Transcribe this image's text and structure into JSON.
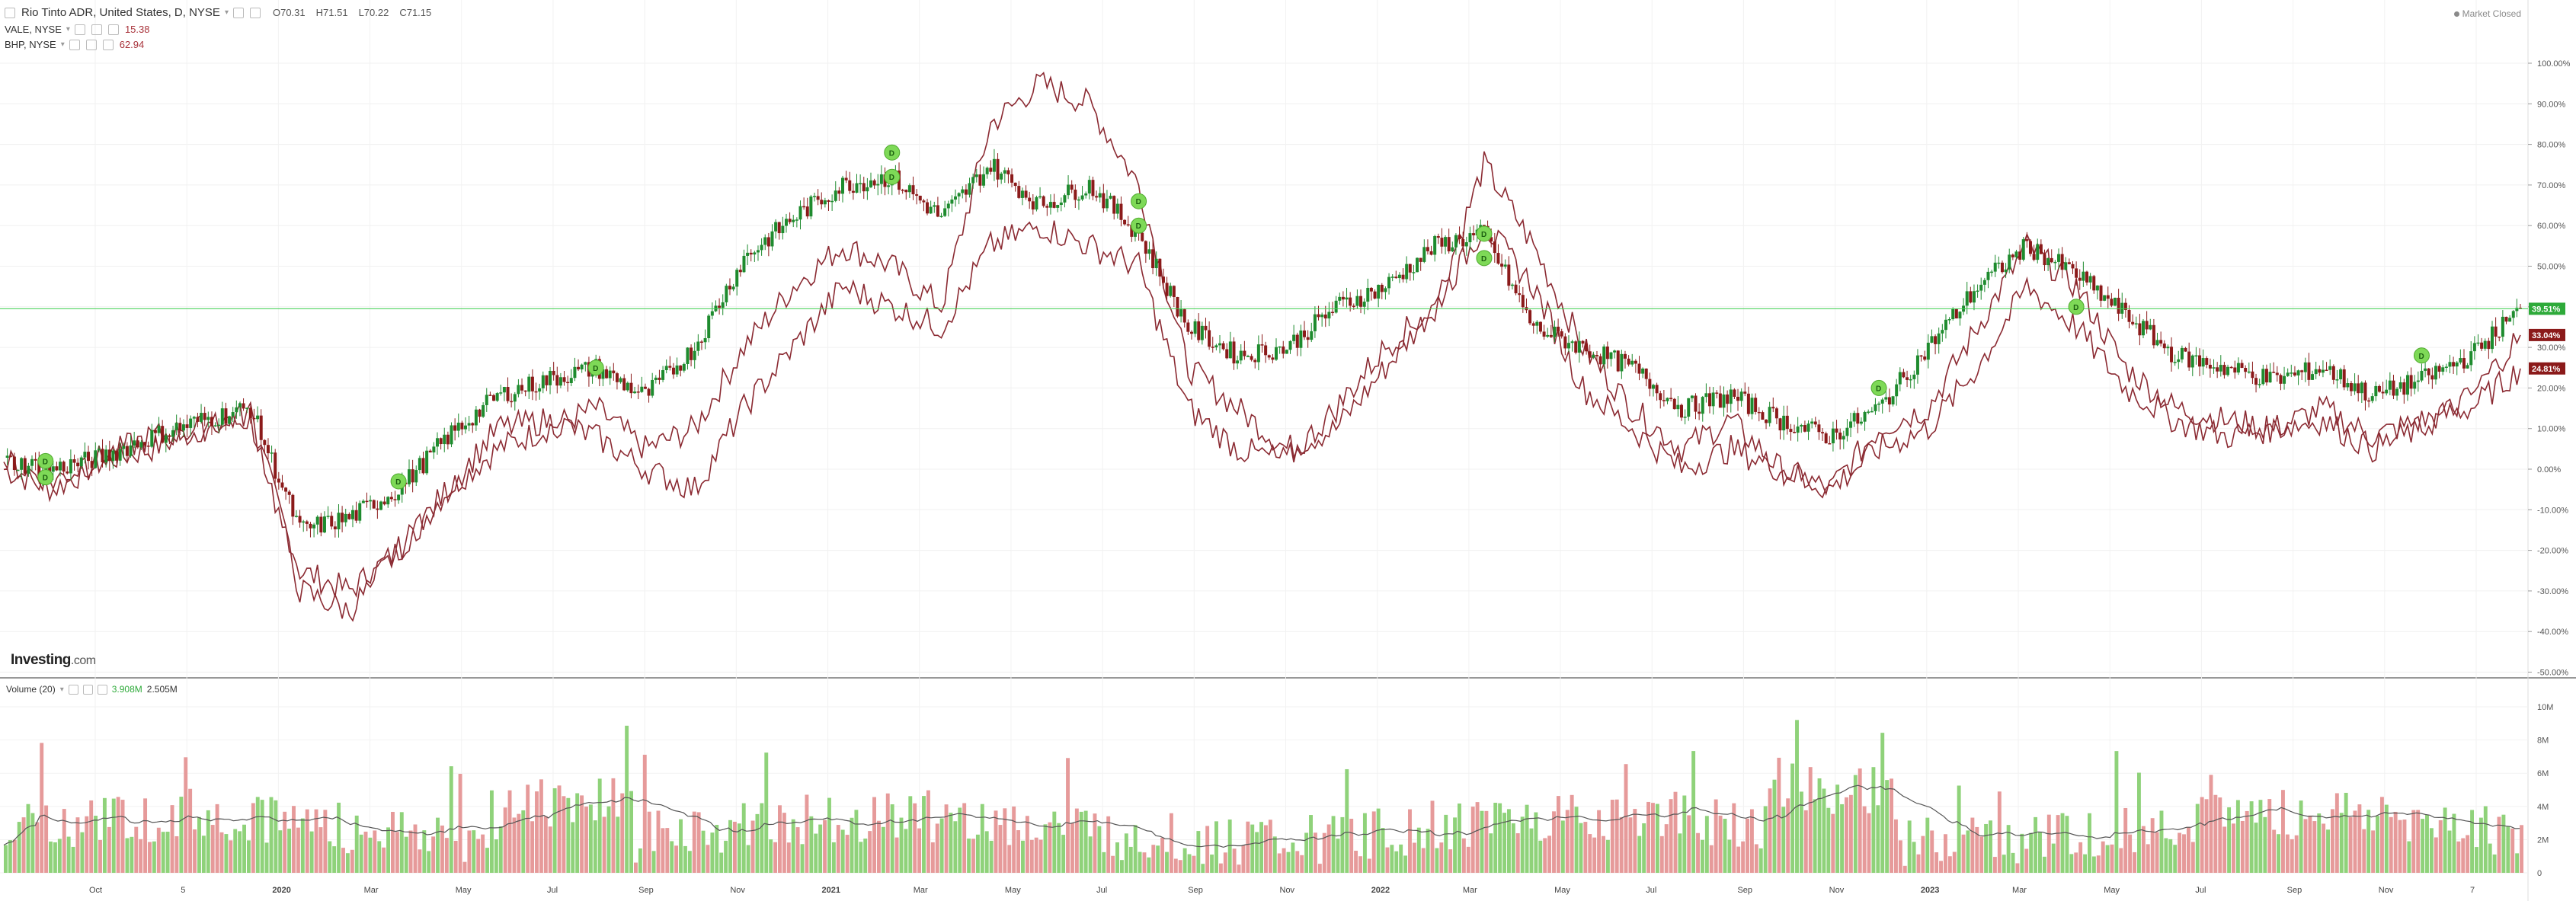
{
  "main_legend": {
    "symbol": "Rio Tinto ADR, United States, D, NYSE",
    "open": "O70.31",
    "high": "H71.51",
    "low": "L70.22",
    "close": "C71.15"
  },
  "comparisons": [
    {
      "symbol": "VALE, NYSE",
      "value": "15.38"
    },
    {
      "symbol": "BHP, NYSE",
      "value": "62.94"
    }
  ],
  "market_status": "Market Closed",
  "logo": {
    "brand": "Investing",
    "suffix": ".com"
  },
  "volume_legend": {
    "label": "Volume (20)",
    "value1": "3.908M",
    "value2": "2.505M"
  },
  "price_axis_labels": [
    "100.00%",
    "90.00%",
    "80.00%",
    "70.00%",
    "60.00%",
    "50.00%",
    "40.00%",
    "30.00%",
    "20.00%",
    "10.00%",
    "0.00%",
    "-10.00%",
    "-20.00%",
    "-30.00%",
    "-40.00%",
    "-50.00%"
  ],
  "price_badges": [
    {
      "text": "39.51%",
      "color": "#2eaa3a"
    },
    {
      "text": "33.04%",
      "color": "#8b1a1a"
    },
    {
      "text": "24.81%",
      "color": "#8b1a1a"
    }
  ],
  "volume_axis_labels": [
    "10M",
    "8M",
    "6M",
    "4M",
    "2M",
    "0"
  ],
  "time_axis_labels": [
    "Oct",
    "5",
    "2020",
    "Mar",
    "May",
    "Jul",
    "Sep",
    "Nov",
    "2021",
    "Mar",
    "May",
    "Jul",
    "Sep",
    "Nov",
    "2022",
    "Mar",
    "May",
    "Jul",
    "Sep",
    "Nov",
    "2023",
    "Mar",
    "May",
    "Jul",
    "Sep",
    "Nov",
    "7"
  ],
  "dividend_marker": "D",
  "colors": {
    "up": "#1e8b2e",
    "down": "#8b1a1a",
    "comparison_line": "#8b2a32",
    "volume_up": "#8fd27a",
    "volume_down": "#e69a9a",
    "current_line": "#3ccf4e",
    "badge_green": "#2eaa3a",
    "badge_red": "#8b1a1a"
  },
  "chart_data": {
    "type": "line",
    "x": [
      "2019-09",
      "2019-10",
      "2019-11",
      "2019-12",
      "2020-01",
      "2020-02",
      "2020-03",
      "2020-04",
      "2020-05",
      "2020-06",
      "2020-07",
      "2020-08",
      "2020-09",
      "2020-10",
      "2020-11",
      "2020-12",
      "2021-01",
      "2021-02",
      "2021-03",
      "2021-04",
      "2021-05",
      "2021-06",
      "2021-07",
      "2021-08",
      "2021-09",
      "2021-10",
      "2021-11",
      "2021-12",
      "2022-01",
      "2022-02",
      "2022-03",
      "2022-04",
      "2022-05",
      "2022-06",
      "2022-07",
      "2022-08",
      "2022-09",
      "2022-10",
      "2022-11",
      "2022-12",
      "2023-01",
      "2023-02",
      "2023-03",
      "2023-04",
      "2023-05",
      "2023-06",
      "2023-07",
      "2023-08",
      "2023-09",
      "2023-10",
      "2023-11",
      "2023-12"
    ],
    "series": [
      {
        "name": "Rio Tinto ADR",
        "values": [
          2,
          0,
          3,
          8,
          12,
          15,
          -15,
          -12,
          -5,
          8,
          18,
          22,
          25,
          18,
          30,
          52,
          62,
          70,
          72,
          62,
          75,
          65,
          70,
          58,
          35,
          28,
          30,
          40,
          45,
          55,
          58,
          35,
          30,
          25,
          15,
          18,
          12,
          8,
          15,
          30,
          45,
          55,
          48,
          38,
          28,
          25,
          22,
          25,
          18,
          22,
          28,
          39.51
        ]
      },
      {
        "name": "VALE",
        "values": [
          0,
          -5,
          2,
          5,
          10,
          12,
          -25,
          -30,
          -20,
          -5,
          5,
          10,
          15,
          5,
          10,
          30,
          45,
          55,
          50,
          40,
          85,
          95,
          90,
          70,
          25,
          15,
          5,
          10,
          25,
          40,
          75,
          55,
          30,
          15,
          5,
          12,
          0,
          -5,
          10,
          15,
          35,
          55,
          45,
          25,
          15,
          12,
          10,
          15,
          8,
          12,
          15,
          24.81
        ]
      },
      {
        "name": "BHP",
        "values": [
          2,
          -3,
          3,
          8,
          10,
          14,
          -30,
          -35,
          -20,
          -5,
          10,
          12,
          8,
          0,
          -5,
          15,
          30,
          45,
          40,
          35,
          55,
          60,
          55,
          50,
          15,
          5,
          2,
          15,
          30,
          40,
          60,
          45,
          20,
          10,
          0,
          5,
          0,
          -5,
          5,
          10,
          25,
          45,
          35,
          20,
          12,
          8,
          10,
          12,
          5,
          10,
          18,
          33.04
        ]
      }
    ],
    "ylabel": "",
    "ylim": [
      -50,
      100
    ],
    "volume": {
      "label": "Volume (20)",
      "ylim": [
        0,
        10
      ]
    }
  }
}
